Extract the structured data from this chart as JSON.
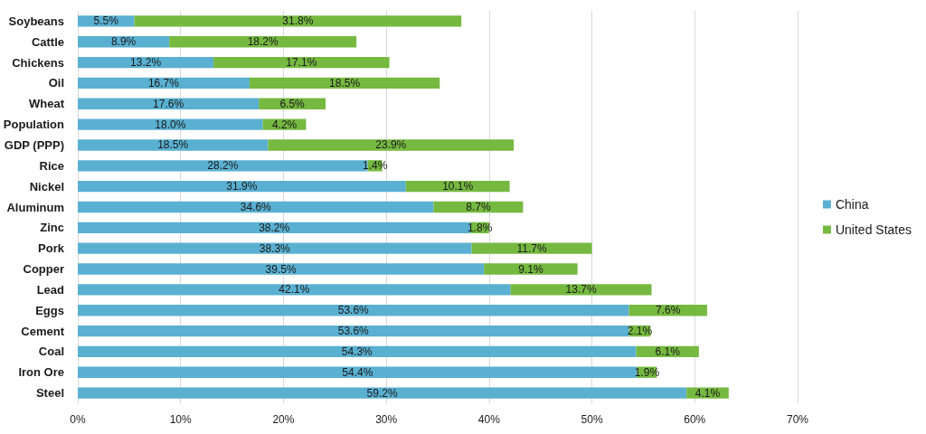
{
  "chart_data": {
    "type": "bar",
    "orientation": "horizontal",
    "stacked": true,
    "categories": [
      "Soybeans",
      "Cattle",
      "Chickens",
      "Oil",
      "Wheat",
      "Population",
      "GDP (PPP)",
      "Rice",
      "Nickel",
      "Aluminum",
      "Zinc",
      "Pork",
      "Copper",
      "Lead",
      "Eggs",
      "Cement",
      "Coal",
      "Iron Ore",
      "Steel"
    ],
    "series": [
      {
        "name": "China",
        "color": "#5ab0d1",
        "values": [
          5.5,
          8.9,
          13.2,
          16.7,
          17.6,
          18.0,
          18.5,
          28.2,
          31.9,
          34.6,
          38.2,
          38.3,
          39.5,
          42.1,
          53.6,
          53.6,
          54.3,
          54.4,
          59.2
        ],
        "value_labels": [
          "5.5%",
          "8.9%",
          "13.2%",
          "16.7%",
          "17.6%",
          "18.0%",
          "18.5%",
          "28.2%",
          "31.9%",
          "34.6%",
          "38.2%",
          "38.3%",
          "39.5%",
          "42.1%",
          "53.6%",
          "53.6%",
          "54.3%",
          "54.4%",
          "59.2%"
        ]
      },
      {
        "name": "United States",
        "color": "#76b941",
        "values": [
          31.8,
          18.2,
          17.1,
          18.5,
          6.5,
          4.2,
          23.9,
          1.4,
          10.1,
          8.7,
          1.8,
          11.7,
          9.1,
          13.7,
          7.6,
          2.1,
          6.1,
          1.9,
          4.1
        ],
        "value_labels": [
          "31.8%",
          "18.2%",
          "17.1%",
          "18.5%",
          "6.5%",
          "4.2%",
          "23.9%",
          "1.4%",
          "10.1%",
          "8.7%",
          "1.8%",
          "11.7%",
          "9.1%",
          "13.7%",
          "7.6%",
          "2.1%",
          "6.1%",
          "1.9%",
          "4.1%"
        ]
      }
    ],
    "xlim": [
      0,
      70
    ],
    "xticks": [
      {
        "value": 0,
        "label": "0%"
      },
      {
        "value": 10,
        "label": "10%"
      },
      {
        "value": 20,
        "label": "20%"
      },
      {
        "value": 30,
        "label": "30%"
      },
      {
        "value": 40,
        "label": "40%"
      },
      {
        "value": 50,
        "label": "50%"
      },
      {
        "value": 60,
        "label": "60%"
      },
      {
        "value": 70,
        "label": "70%"
      }
    ],
    "grid": "x",
    "legend": "right"
  }
}
